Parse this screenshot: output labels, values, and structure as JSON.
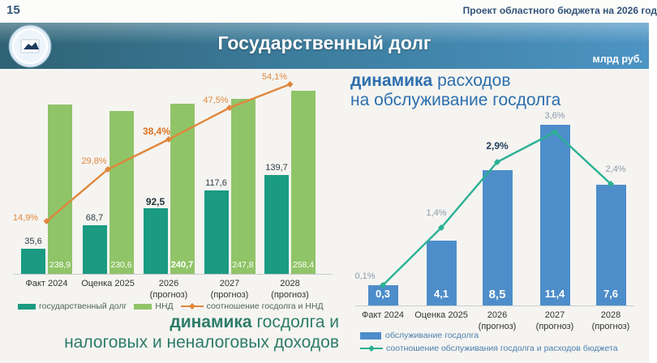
{
  "page": {
    "number": "15",
    "header_right": "Проект областного бюджета на 2026 год"
  },
  "banner": {
    "title": "Государственный долг",
    "unit": "млрд руб."
  },
  "chart_data": [
    {
      "id": "debt-dynamics",
      "type": "bar",
      "title": {
        "bold": "динамика",
        "rest_line1": " госдолга и",
        "line2": "налоговых и неналоговых доходов"
      },
      "categories": [
        "Факт 2024",
        "Оценка 2025",
        "2026\n(прогноз)",
        "2027\n(прогноз)",
        "2028\n(прогноз)"
      ],
      "highlight_index": 2,
      "ylim": [
        0,
        285
      ],
      "legend_position": "bottom",
      "series": [
        {
          "name": "государственный долг",
          "color": "#1a9b82",
          "values": [
            35.6,
            68.7,
            92.5,
            117.6,
            139.7
          ],
          "labels": [
            "35,6",
            "68,7",
            "92,5",
            "117,6",
            "139,7"
          ]
        },
        {
          "name": "ННД",
          "color": "#90c468",
          "values": [
            238.9,
            230.6,
            240.7,
            247.8,
            258.4
          ],
          "labels": [
            "238,9",
            "230,6",
            "240,7",
            "247,8",
            "258,4"
          ]
        }
      ],
      "line": {
        "name": "соотношение госдолга и ННД",
        "color": "#e0873c",
        "values": [
          14.9,
          29.8,
          38.4,
          47.5,
          54.1
        ],
        "labels": [
          "14,9%",
          "29,8%",
          "38,4%",
          "47,5%",
          "54,1%"
        ],
        "ylim_percent": [
          0,
          58
        ]
      }
    },
    {
      "id": "debt-service",
      "type": "bar",
      "title": {
        "bold": "динамика",
        "rest_line1": " расходов",
        "line2": "на обслуживание госдолга"
      },
      "categories": [
        "Факт 2024",
        "Оценка 2025",
        "2026\n(прогноз)",
        "2027\n(прогноз)",
        "2028\n(прогноз)"
      ],
      "highlight_index": 2,
      "ylim": [
        0,
        14.5
      ],
      "legend_position": "bottom",
      "series": [
        {
          "name": "обслуживание госдолга",
          "color": "#4d8dca",
          "values": [
            0.3,
            4.1,
            8.5,
            11.4,
            7.6
          ],
          "labels": [
            "0,3",
            "4,1",
            "8,5",
            "11,4",
            "7,6"
          ]
        }
      ],
      "line": {
        "name": "соотношение обслуживания госдолга и расходов бюджета",
        "color": "#2ab193",
        "values": [
          0.1,
          1.4,
          2.9,
          3.6,
          2.4
        ],
        "labels": [
          "0,1%",
          "1,4%",
          "2,9%",
          "3,6%",
          "2,4%"
        ],
        "ylim_percent": [
          0,
          5
        ]
      }
    }
  ]
}
